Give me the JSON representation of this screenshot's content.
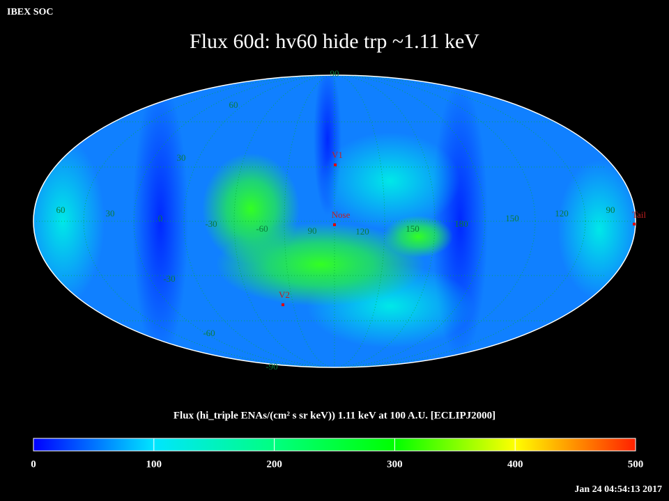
{
  "header": {
    "corner": "IBEX SOC",
    "title": "Flux   60d: hv60 hide trp ~1.11 keV"
  },
  "map": {
    "grid_labels": [
      "90",
      "60",
      "30",
      "60",
      "30",
      "0",
      "-30",
      "-60",
      "90",
      "120",
      "150",
      "180",
      "150",
      "120",
      "90",
      "-30",
      "-60",
      "-90"
    ],
    "markers": [
      "V1",
      "Nose",
      "Tail",
      "V2"
    ]
  },
  "colorbar": {
    "label": "Flux (hi_triple ENAs/(cm² s sr keV))  1.11 keV at 100 A.U. [ECLIPJ2000]",
    "range": [
      0,
      500
    ],
    "ticks": [
      0,
      100,
      200,
      300,
      400,
      500
    ]
  },
  "timestamp": "Jan 24 04:54:13 2017"
}
